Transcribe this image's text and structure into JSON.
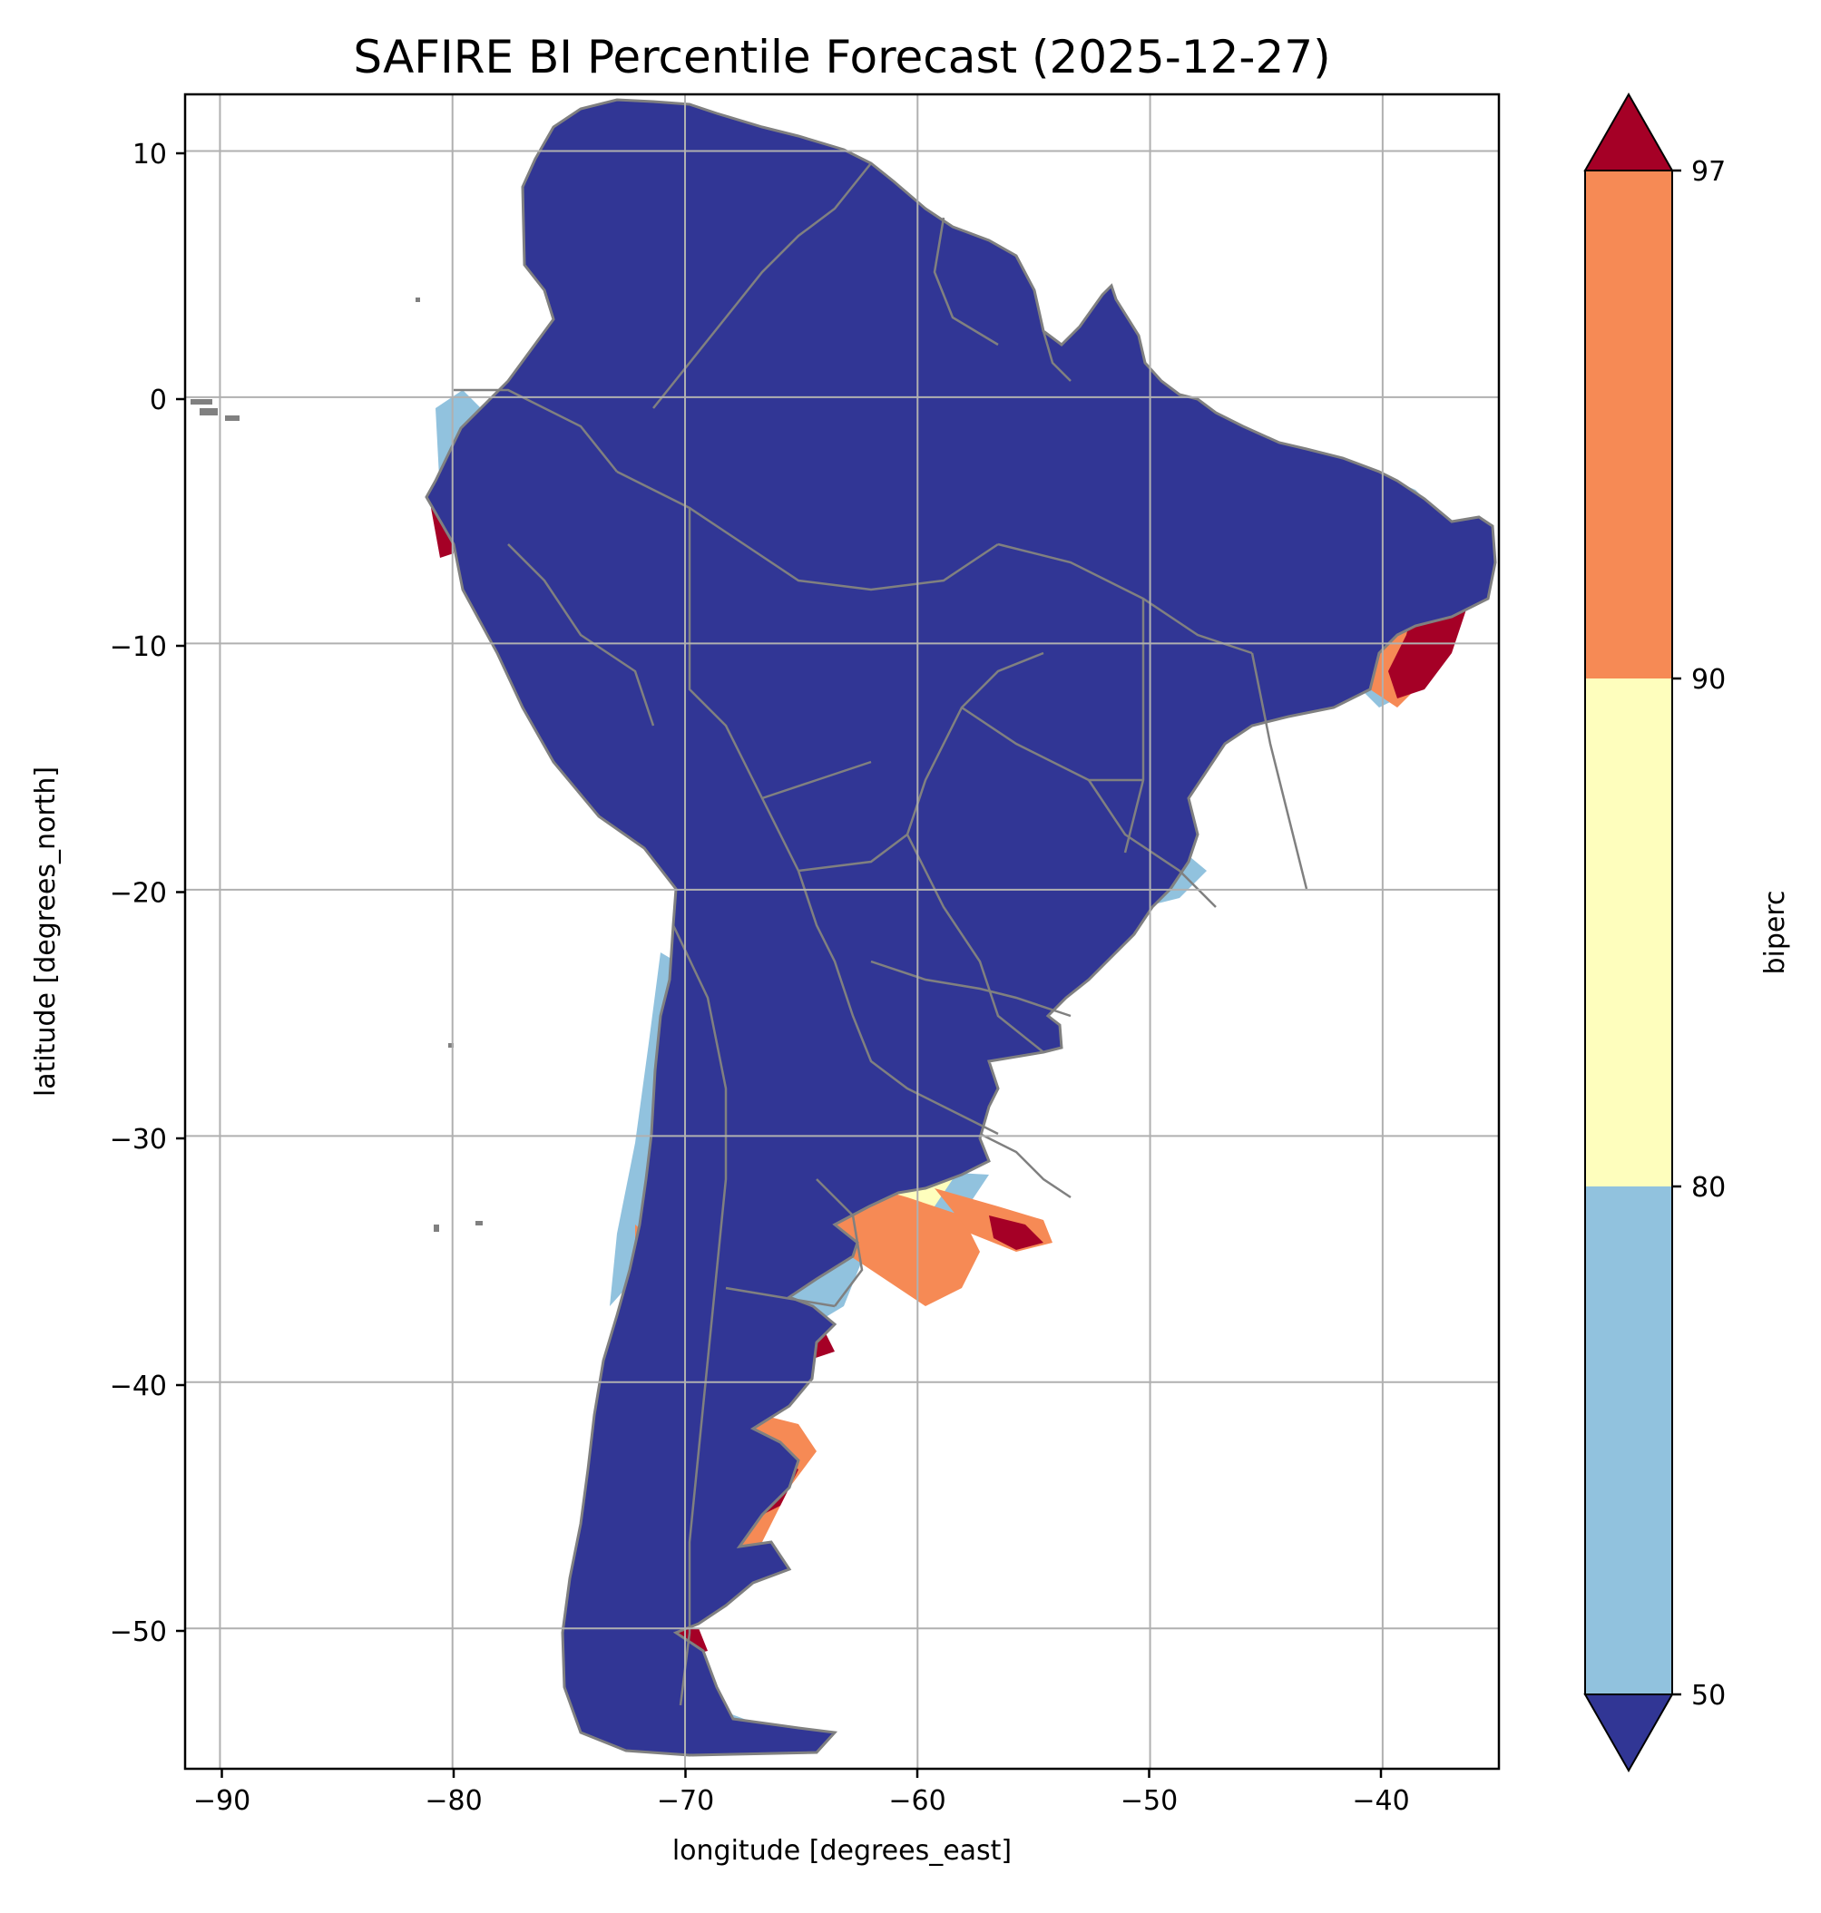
{
  "title": "SAFIRE BI Percentile Forecast (2025-12-27)",
  "xlabel": "longitude [degrees_east]",
  "ylabel": "latitude [degrees_north]",
  "x_ticks": [
    "−90",
    "−80",
    "−70",
    "−60",
    "−50",
    "−40"
  ],
  "y_ticks": [
    "10",
    "0",
    "−10",
    "−20",
    "−30",
    "−40",
    "−50"
  ],
  "colorbar": {
    "label": "biperc",
    "ticks": [
      "97",
      "90",
      "80",
      "50"
    ],
    "bands": [
      {
        "from": 90,
        "to": 97,
        "color": "#f68a55"
      },
      {
        "from": 80,
        "to": 90,
        "color": "#fefebd"
      },
      {
        "from": 50,
        "to": 80,
        "color": "#91c2de"
      }
    ],
    "over_color": "#a50026",
    "under_color": "#313695"
  },
  "chart_data": {
    "type": "heatmap",
    "title": "SAFIRE BI Percentile Forecast (2025-12-27)",
    "xlabel": "longitude [degrees_east]",
    "ylabel": "latitude [degrees_north]",
    "xlim": [
      -91.5,
      -35
    ],
    "ylim": [
      -55.7,
      12.3
    ],
    "grid": true,
    "colorbar_label": "biperc",
    "levels": [
      50,
      80,
      90,
      97
    ],
    "extend": "both",
    "region": "South America"
  },
  "colors": {
    "grid": "#b0b0b0",
    "borders": "#808080",
    "land_default": "#313695"
  }
}
